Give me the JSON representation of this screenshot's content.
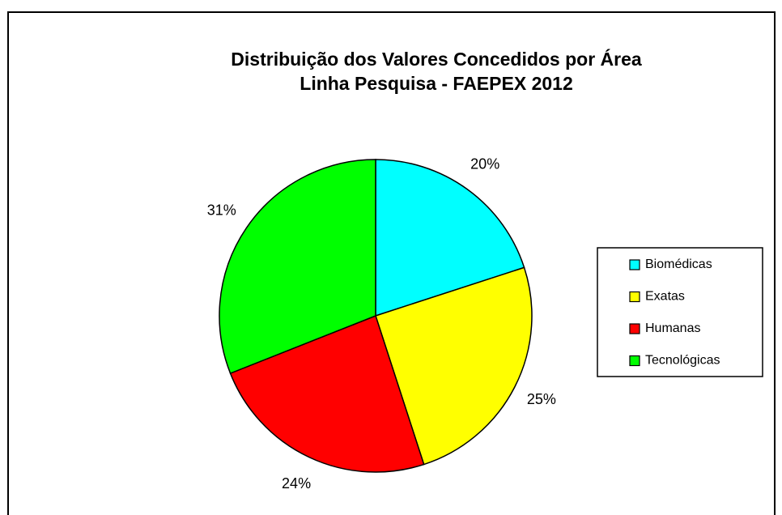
{
  "chart_data": {
    "type": "pie",
    "title": [
      "Distribuição dos Valores Concedidos por Área",
      "Linha Pesquisa - FAEPEX 2012"
    ],
    "categories": [
      "Biomédicas",
      "Exatas",
      "Humanas",
      "Tecnológicas"
    ],
    "values": [
      20,
      25,
      24,
      31
    ],
    "value_labels": [
      "20%",
      "25%",
      "24%",
      "31%"
    ],
    "colors": [
      "#00ffff",
      "#ffff00",
      "#ff0000",
      "#00ff00"
    ],
    "legend": "right"
  }
}
